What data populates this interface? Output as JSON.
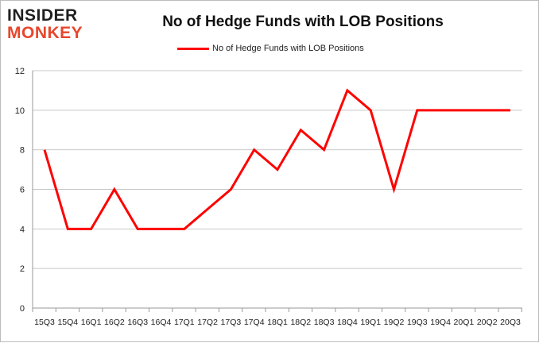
{
  "logo": {
    "line1": "INSIDER",
    "line2": "MONKEY"
  },
  "chart_data": {
    "type": "line",
    "title": "No of Hedge Funds with LOB Positions",
    "categories": [
      "15Q3",
      "15Q4",
      "16Q1",
      "16Q2",
      "16Q3",
      "16Q4",
      "17Q1",
      "17Q2",
      "17Q3",
      "17Q4",
      "18Q1",
      "18Q2",
      "18Q3",
      "18Q4",
      "19Q1",
      "19Q2",
      "19Q3",
      "19Q4",
      "20Q1",
      "20Q2",
      "20Q3"
    ],
    "series": [
      {
        "name": "No of Hedge Funds with LOB Positions",
        "values": [
          8,
          4,
          4,
          6,
          4,
          4,
          4,
          5,
          6,
          8,
          7,
          9,
          8,
          11,
          10,
          6,
          10,
          10,
          10,
          10,
          10
        ],
        "color": "#ff0000"
      }
    ],
    "ylim": [
      0,
      12
    ],
    "yticks": [
      0,
      2,
      4,
      6,
      8,
      10,
      12
    ],
    "grid": true,
    "legend": "top"
  }
}
